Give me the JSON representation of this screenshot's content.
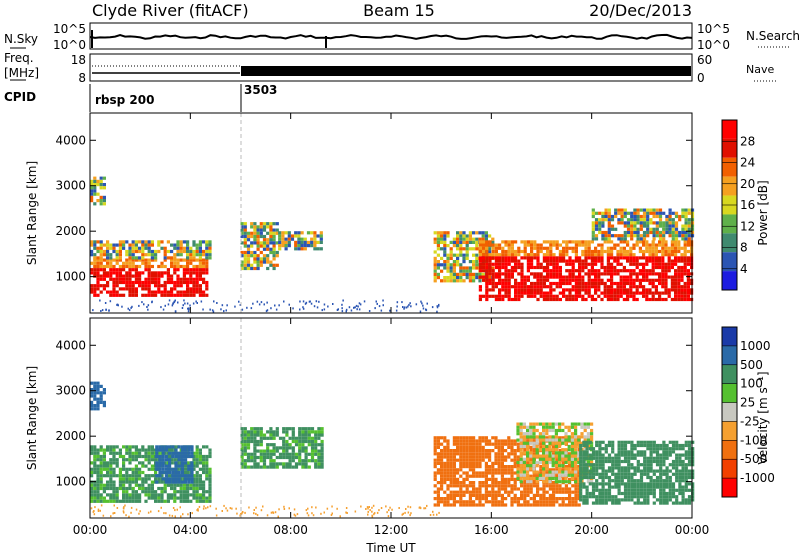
{
  "header": {
    "station": "Clyde River (fitACF)",
    "beam": "Beam 15",
    "date": "20/Dec/2013"
  },
  "noise_panel": {
    "left_label": "N.Sky",
    "right_label": "N.Search",
    "left_ticks": [
      "10^5",
      "10^0"
    ],
    "right_ticks": [
      "10^5",
      "10^0"
    ]
  },
  "freq_panel": {
    "left_label_line1": "Freq.",
    "left_label_line2": "[MHz]",
    "right_label": "Nave",
    "left_ticks": [
      "18",
      "8"
    ],
    "right_ticks": [
      "60",
      "0"
    ]
  },
  "cpid": {
    "label": "CPID",
    "segments": [
      {
        "start_hour": 0,
        "name": "rbsp 200"
      },
      {
        "start_hour": 6,
        "name": "3503"
      }
    ]
  },
  "colors": {
    "power": [
      "#1c1ce0",
      "#2b55b3",
      "#3f8a6f",
      "#5fb04a",
      "#d8d820",
      "#f5a020",
      "#f26000",
      "#e01000",
      "#ff0000"
    ],
    "velocity": [
      "#ff0000",
      "#f24000",
      "#f07010",
      "#f5a030",
      "#c8c8c0",
      "#55c030",
      "#3f9060",
      "#2a6aa8",
      "#1a3aa8"
    ]
  },
  "chart_data": [
    {
      "type": "heatmap",
      "name": "power",
      "ylabel": "Slant Range [km]",
      "yticks": [
        "1000",
        "2000",
        "3000",
        "4000"
      ],
      "ylim": [
        200,
        4600
      ],
      "xlim": [
        0,
        24
      ],
      "colorbar": {
        "label": "Power [dB]",
        "ticks": [
          "4",
          "8",
          "12",
          "16",
          "20",
          "24",
          "28"
        ],
        "range": [
          0,
          32
        ]
      },
      "regions": [
        {
          "x": [
            0,
            4.7
          ],
          "y": [
            600,
            1400
          ],
          "level": "high"
        },
        {
          "x": [
            0,
            4.8
          ],
          "y": [
            1400,
            1800
          ],
          "level": "mid"
        },
        {
          "x": [
            0,
            0.6
          ],
          "y": [
            2600,
            3200
          ],
          "level": "mid"
        },
        {
          "x": [
            6,
            7.5
          ],
          "y": [
            1200,
            2200
          ],
          "level": "mid"
        },
        {
          "x": [
            7.5,
            9.2
          ],
          "y": [
            1600,
            2000
          ],
          "level": "mid"
        },
        {
          "x": [
            13.7,
            16
          ],
          "y": [
            900,
            2000
          ],
          "level": "mid"
        },
        {
          "x": [
            15.5,
            24
          ],
          "y": [
            500,
            1800
          ],
          "level": "high"
        },
        {
          "x": [
            20,
            24
          ],
          "y": [
            1800,
            2500
          ],
          "level": "mid"
        }
      ]
    },
    {
      "type": "heatmap",
      "name": "velocity",
      "ylabel": "Slant Range [km]",
      "xlabel": "Time UT",
      "yticks": [
        "1000",
        "2000",
        "3000",
        "4000"
      ],
      "xticks": [
        "00:00",
        "04:00",
        "08:00",
        "12:00",
        "16:00",
        "20:00",
        "00:00"
      ],
      "ylim": [
        200,
        4600
      ],
      "xlim": [
        0,
        24
      ],
      "colorbar": {
        "label": "Velocity [m s⁻¹]",
        "ticks": [
          "1000",
          "500",
          "100",
          "25",
          "-25",
          "-100",
          "-500",
          "-1000"
        ],
        "range": [
          -1000,
          1000
        ]
      },
      "regions": [
        {
          "x": [
            0,
            4.8
          ],
          "y": [
            600,
            1800
          ],
          "value_ms": 150
        },
        {
          "x": [
            2.6,
            4.1
          ],
          "y": [
            1000,
            1800
          ],
          "value_ms": 800
        },
        {
          "x": [
            0,
            0.6
          ],
          "y": [
            2600,
            3200
          ],
          "value_ms": 600
        },
        {
          "x": [
            6,
            9.2
          ],
          "y": [
            1300,
            2200
          ],
          "value_ms": 150
        },
        {
          "x": [
            13.7,
            19.5
          ],
          "y": [
            500,
            2000
          ],
          "value_ms": -300
        },
        {
          "x": [
            17,
            20
          ],
          "y": [
            1000,
            2300
          ],
          "value_ms": 0
        },
        {
          "x": [
            19.5,
            24
          ],
          "y": [
            500,
            1900
          ],
          "value_ms": 200
        }
      ]
    }
  ]
}
